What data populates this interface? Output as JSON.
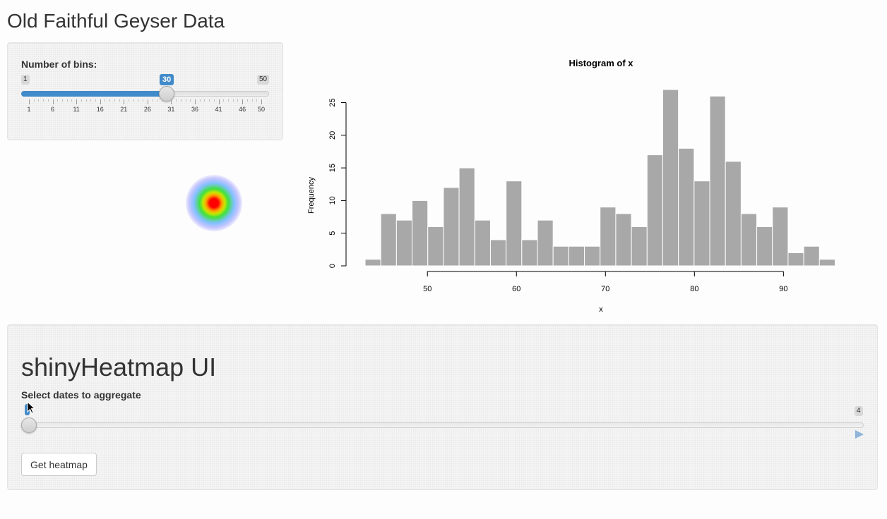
{
  "page": {
    "title": "Old Faithful Geyser Data"
  },
  "bins_slider": {
    "label": "Number of bins:",
    "min": 1,
    "max": 50,
    "value": 30,
    "min_label": "1",
    "max_label": "50",
    "value_label": "30",
    "tick_labels": [
      "1",
      "6",
      "11",
      "16",
      "21",
      "26",
      "31",
      "36",
      "41",
      "46",
      "50"
    ],
    "accent": "#428bca"
  },
  "heatmap_panel": {
    "heading": "shinyHeatmap UI",
    "dates_label": "Select dates to aggregate",
    "dates_slider": {
      "min": 1,
      "max": 4,
      "value": 1,
      "max_label": "4"
    },
    "play_icon": "play-icon",
    "button_label": "Get heatmap"
  },
  "chart_data": {
    "type": "bar",
    "title": "Histogram of x",
    "xlabel": "x",
    "ylabel": "Frequency",
    "bin_start": 43,
    "bin_width": 1.76,
    "values": [
      1,
      8,
      7,
      10,
      6,
      12,
      15,
      7,
      4,
      13,
      4,
      7,
      3,
      3,
      3,
      9,
      8,
      6,
      17,
      27,
      18,
      13,
      26,
      16,
      8,
      6,
      9,
      2,
      3,
      1
    ],
    "xticks": [
      50,
      60,
      70,
      80,
      90
    ],
    "yticks": [
      0,
      5,
      10,
      15,
      20,
      25
    ],
    "xlim": [
      43,
      96
    ],
    "ylim": [
      0,
      27
    ],
    "bar_color": "#a8a8a8",
    "grid": false
  }
}
